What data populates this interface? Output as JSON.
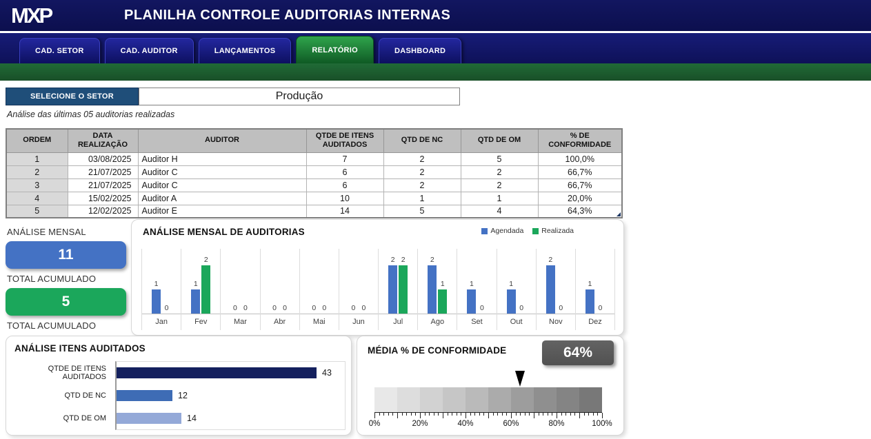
{
  "colors": {
    "navy_header": "#121660",
    "tab_blue": "#23279e",
    "tab_active_green": "#2fa44c",
    "banner_green": "#1b5e2f",
    "selector_button_blue": "#1f4e79",
    "accent_blue": "#4472c4",
    "accent_green": "#1ba75b",
    "badge_gray": "#595959"
  },
  "header": {
    "logo": "MXP",
    "title": "PLANILHA CONTROLE AUDITORIAS INTERNAS"
  },
  "tabs": [
    {
      "label": "CAD. SETOR",
      "active": false
    },
    {
      "label": "CAD. AUDITOR",
      "active": false
    },
    {
      "label": "LANÇAMENTOS",
      "active": false
    },
    {
      "label": "RELATÓRIO",
      "active": true
    },
    {
      "label": "DASHBOARD",
      "active": false
    }
  ],
  "selector": {
    "button_label": "SELECIONE O SETOR",
    "value": "Produção"
  },
  "audit_table": {
    "caption": "Análise das últimas 05 auditorias realizadas",
    "columns": [
      "ORDEM",
      "DATA REALIZAÇÃO",
      "AUDITOR",
      "QTDE DE ITENS AUDITADOS",
      "QTD DE NC",
      "QTD DE OM",
      "% DE CONFORMIDADE"
    ],
    "rows": [
      [
        "1",
        "03/08/2025",
        "Auditor H",
        "7",
        "2",
        "5",
        "100,0%"
      ],
      [
        "2",
        "21/07/2025",
        "Auditor C",
        "6",
        "2",
        "2",
        "66,7%"
      ],
      [
        "3",
        "21/07/2025",
        "Auditor C",
        "6",
        "2",
        "2",
        "66,7%"
      ],
      [
        "4",
        "15/02/2025",
        "Auditor A",
        "10",
        "1",
        "1",
        "20,0%"
      ],
      [
        "5",
        "12/02/2025",
        "Auditor E",
        "14",
        "5",
        "4",
        "64,3%"
      ]
    ]
  },
  "summary": {
    "title": "ANÁLISE MENSAL",
    "agendada_total": "11",
    "agendada_caption": "TOTAL ACUMULADO",
    "realizada_total": "5",
    "realizada_caption": "TOTAL ACUMULADO"
  },
  "chart_data": [
    {
      "type": "bar",
      "title": "ANÁLISE MENSAL DE AUDITORIAS",
      "categories": [
        "Jan",
        "Fev",
        "Mar",
        "Abr",
        "Mai",
        "Jun",
        "Jul",
        "Ago",
        "Set",
        "Out",
        "Nov",
        "Dez"
      ],
      "series": [
        {
          "name": "Agendada",
          "color": "#4472c4",
          "values": [
            1,
            1,
            0,
            0,
            0,
            0,
            2,
            2,
            1,
            1,
            2,
            1
          ]
        },
        {
          "name": "Realizada",
          "color": "#1ba75b",
          "values": [
            0,
            2,
            0,
            0,
            0,
            0,
            2,
            1,
            0,
            0,
            0,
            0
          ]
        }
      ],
      "ylim": [
        0,
        2
      ],
      "grid": "vertical-separators",
      "legend_position": "top-right",
      "data_labels": true
    },
    {
      "type": "bar",
      "orientation": "horizontal",
      "title": "ANÁLISE ITENS AUDITADOS",
      "categories": [
        "QTDE DE ITENS AUDITADOS",
        "QTD DE NC",
        "QTD DE OM"
      ],
      "values": [
        43,
        12,
        14
      ],
      "bar_colors": [
        "#14205e",
        "#3e6cb5",
        "#94a9d8"
      ],
      "xlim": [
        0,
        45
      ],
      "data_labels": true
    },
    {
      "type": "gauge",
      "title": "MÉDIA % DE CONFORMIDADE",
      "value_label": "64%",
      "value_percent": 64,
      "axis_min_label": "0%",
      "axis_max_label": "100%",
      "axis_tick_labels": [
        "0%",
        "20%",
        "40%",
        "60%",
        "80%",
        "100%"
      ],
      "segment_colors": [
        "#e8e8e8",
        "#dddddd",
        "#d2d2d2",
        "#c6c6c6",
        "#bababa",
        "#ababab",
        "#9d9d9d",
        "#8f8f8f",
        "#848484",
        "#787878"
      ]
    }
  ]
}
